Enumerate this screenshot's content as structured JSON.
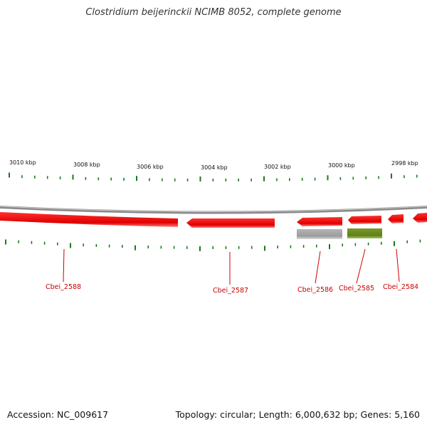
{
  "title": "Clostridium beijerinckii NCIMB 8052, complete genome",
  "footer": {
    "accession": "Accession: NC_009617",
    "summary": "Topology: circular; Length: 6,000,632 bp; Genes: 5,160"
  },
  "colors": {
    "cds": "#ee0000",
    "cds_gray": "#a8a8a8",
    "cds_green": "#6b8e23",
    "backbone": "#8a8a8a",
    "tick": "#1a7a1a",
    "label": "#cc0000"
  },
  "scale": {
    "unit": "kbp",
    "labels": [
      "3010 kbp",
      "3008 kbp",
      "3006 kbp",
      "3004 kbp",
      "3002 kbp",
      "3000 kbp",
      "2998 kbp"
    ]
  },
  "genes": [
    {
      "name": "Cbei_2588",
      "color": "red",
      "strand": "reverse"
    },
    {
      "name": "Cbei_2587",
      "color": "red",
      "strand": "reverse"
    },
    {
      "name": "Cbei_2586",
      "color": "red",
      "strand": "reverse"
    },
    {
      "name": "Cbei_2585",
      "color": "red",
      "strand": "reverse"
    },
    {
      "name": "Cbei_2584",
      "color": "red",
      "strand": "reverse"
    }
  ],
  "features": [
    {
      "color": "gray"
    },
    {
      "color": "green"
    }
  ]
}
